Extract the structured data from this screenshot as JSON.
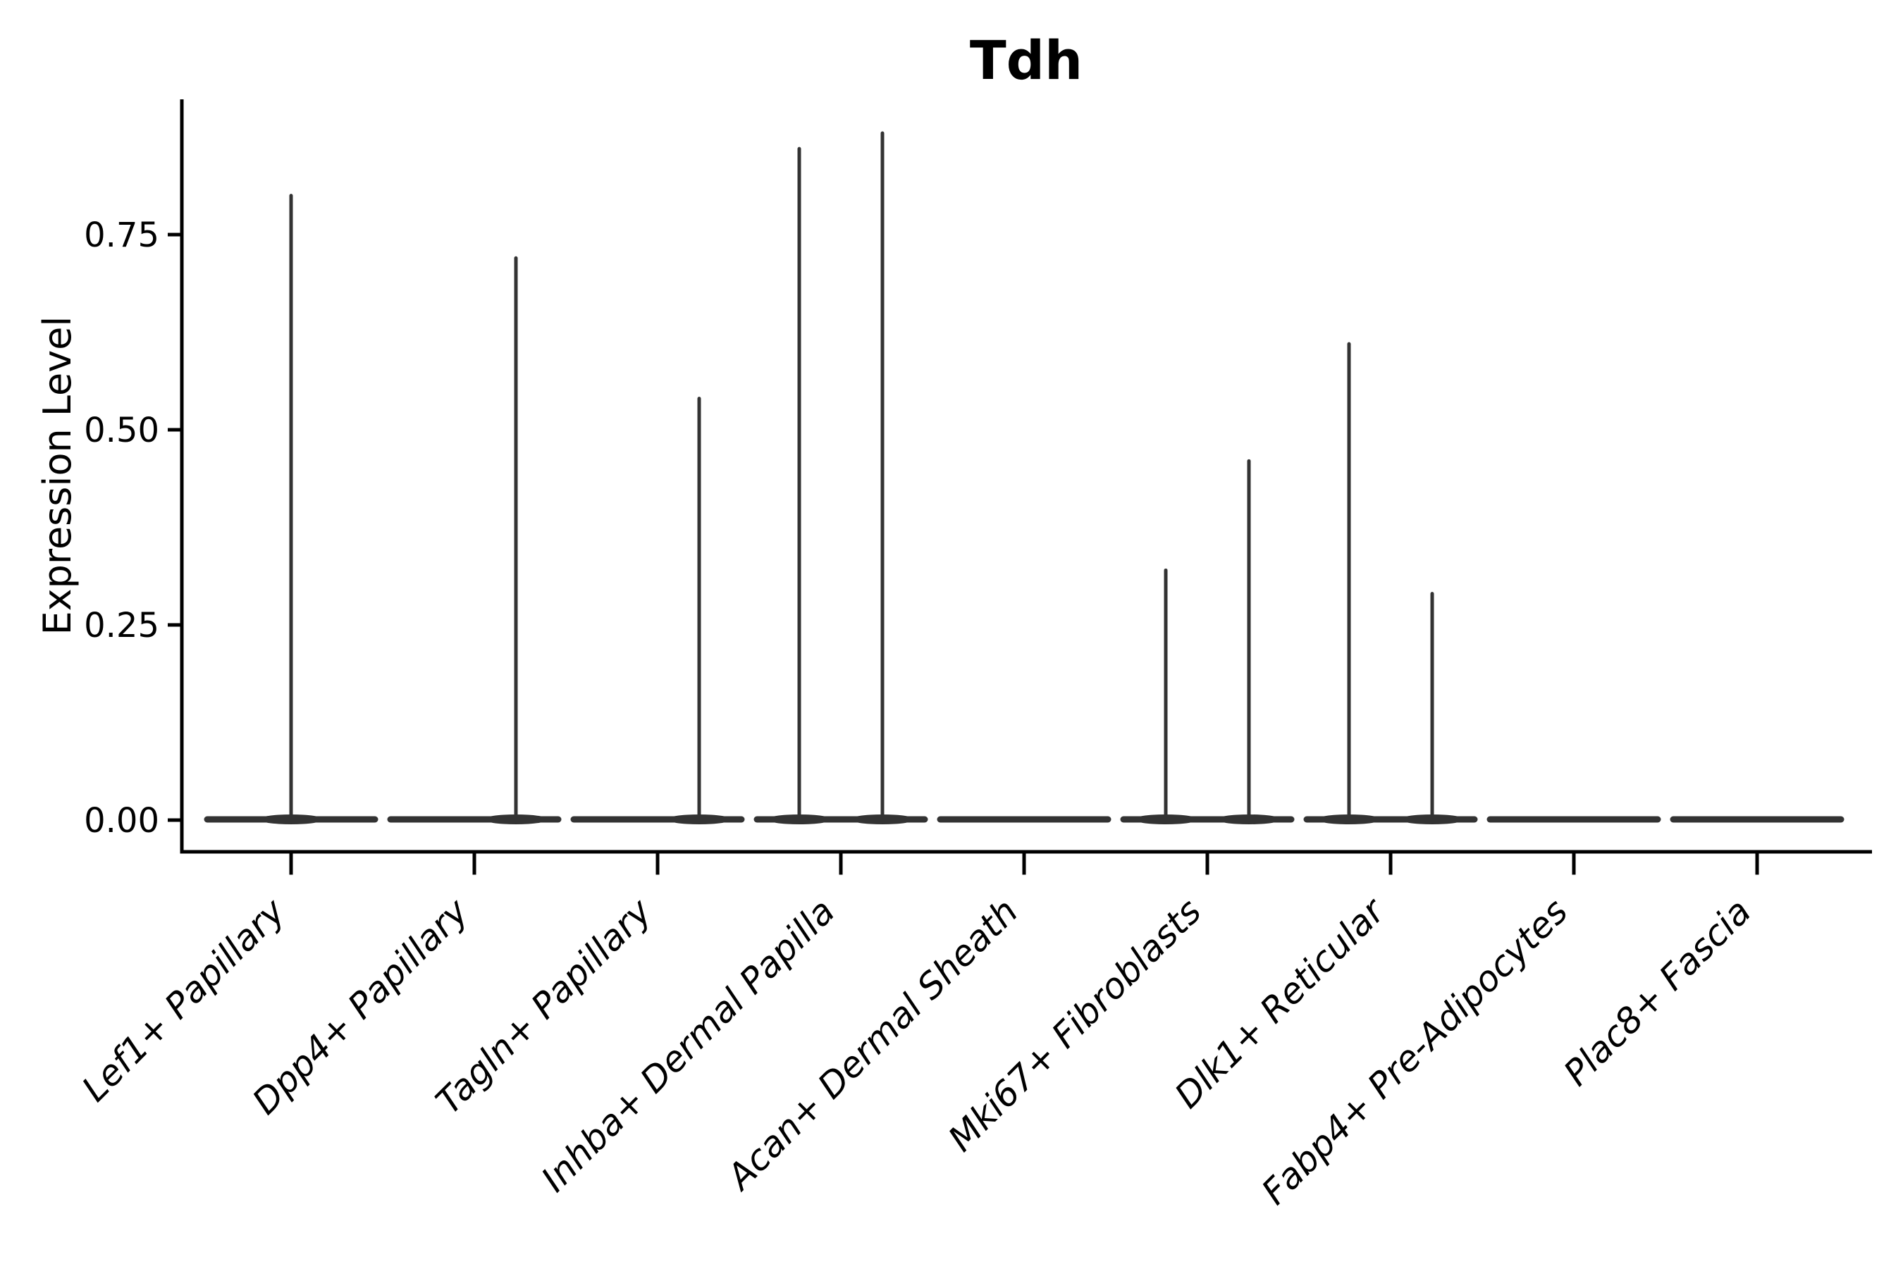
{
  "title": "Tdh",
  "axes": {
    "y": {
      "label": "Expression Level",
      "ticks": [
        {
          "value": 0.0,
          "label": "0.00"
        },
        {
          "value": 0.25,
          "label": "0.25"
        },
        {
          "value": 0.5,
          "label": "0.50"
        },
        {
          "value": 0.75,
          "label": "0.75"
        }
      ]
    },
    "x": {
      "categories": [
        "Lef1+ Papillary",
        "Dpp4+ Papillary",
        "Tagln+ Papillary",
        "Inhba+ Dermal Papilla",
        "Acan+ Dermal Sheath",
        "Mki67+ Fibroblasts",
        "Dlk1+ Reticular",
        "Fabp4+ Pre-Adipocytes",
        "Plac8+ Fascia"
      ]
    }
  },
  "chart_data": {
    "type": "violin",
    "title": "Tdh",
    "xlabel": "",
    "ylabel": "Expression Level",
    "ylim": [
      0,
      0.92
    ],
    "grid": false,
    "legend": "none",
    "ytick_values": [
      0.0,
      0.25,
      0.5,
      0.75
    ],
    "ytick_labels": [
      "0.00",
      "0.25",
      "0.50",
      "0.75"
    ],
    "categories": [
      "Lef1+ Papillary",
      "Dpp4+ Papillary",
      "Tagln+ Papillary",
      "Inhba+ Dermal Papilla",
      "Acan+ Dermal Sheath",
      "Mki67+ Fibroblasts",
      "Dlk1+ Reticular",
      "Fabp4+ Pre-Adipocytes",
      "Plac8+ Fascia"
    ],
    "violin_description": "Each category shows a flat violin body at expression 0 with thin vertical tails (spikes) rising to the maximum expression of rare expressing cells; spike position is the tail offset within the category slot.",
    "violins": [
      {
        "category": "Lef1+ Papillary",
        "body_at_zero": true,
        "spikes": [
          {
            "position": "center",
            "value": 0.8
          }
        ]
      },
      {
        "category": "Dpp4+ Papillary",
        "body_at_zero": true,
        "spikes": [
          {
            "position": "right",
            "value": 0.72
          }
        ]
      },
      {
        "category": "Tagln+ Papillary",
        "body_at_zero": true,
        "spikes": [
          {
            "position": "right",
            "value": 0.54
          }
        ]
      },
      {
        "category": "Inhba+ Dermal Papilla",
        "body_at_zero": true,
        "spikes": [
          {
            "position": "left",
            "value": 0.86
          },
          {
            "position": "right",
            "value": 0.88
          }
        ]
      },
      {
        "category": "Acan+ Dermal Sheath",
        "body_at_zero": true,
        "spikes": []
      },
      {
        "category": "Mki67+ Fibroblasts",
        "body_at_zero": true,
        "spikes": [
          {
            "position": "left",
            "value": 0.32
          },
          {
            "position": "right",
            "value": 0.46
          }
        ]
      },
      {
        "category": "Dlk1+ Reticular",
        "body_at_zero": true,
        "spikes": [
          {
            "position": "left",
            "value": 0.61
          },
          {
            "position": "right",
            "value": 0.29
          }
        ]
      },
      {
        "category": "Fabp4+ Pre-Adipocytes",
        "body_at_zero": true,
        "spikes": []
      },
      {
        "category": "Plac8+ Fascia",
        "body_at_zero": true,
        "spikes": []
      }
    ],
    "colors": {
      "violin_stroke": "#333333",
      "axis": "#000000",
      "text": "#000000",
      "background": "#ffffff"
    }
  }
}
